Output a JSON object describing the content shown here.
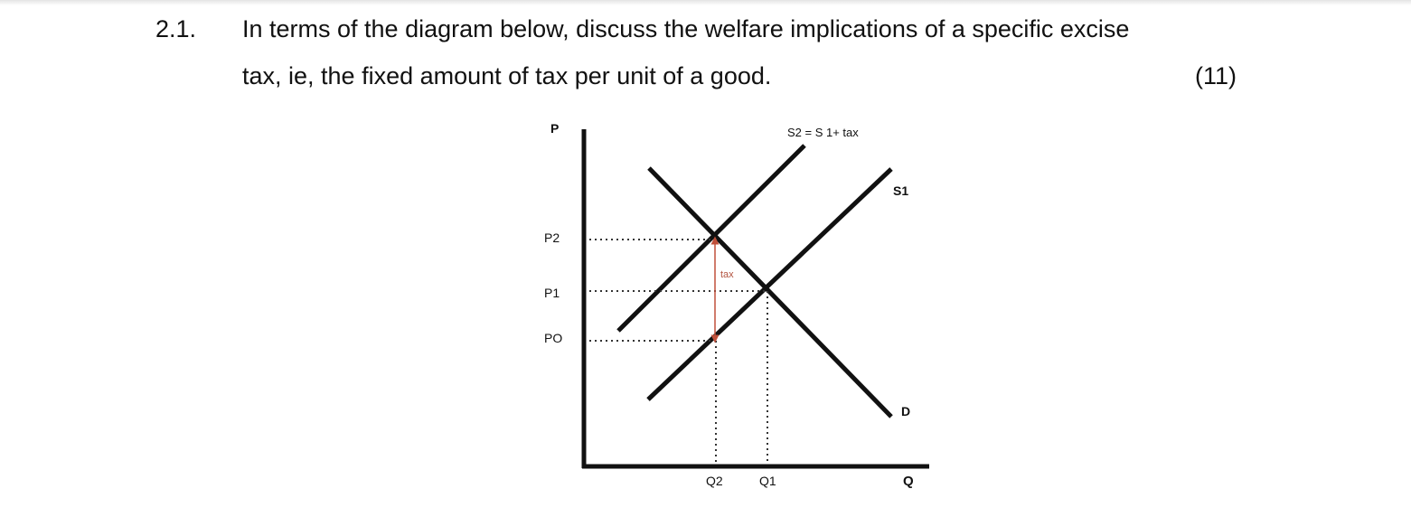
{
  "question": {
    "number": "2.1.",
    "line1": "In terms of the diagram below, discuss the welfare implications of a specific excise",
    "line2": "tax, ie, the fixed amount of tax per unit of a good.",
    "marks": "(11)"
  },
  "diagram": {
    "y_axis_label": "P",
    "x_axis_label": "Q",
    "price_labels": [
      "P2",
      "P1",
      "PO"
    ],
    "quantity_labels": [
      "Q2",
      "Q1"
    ],
    "curve_labels": {
      "s2": "S2 = S 1+ tax",
      "s1": "S1",
      "demand": "D"
    },
    "tax_label": "tax",
    "colors": {
      "lines": "#111111",
      "tax_arrow": "#c0503a"
    }
  }
}
